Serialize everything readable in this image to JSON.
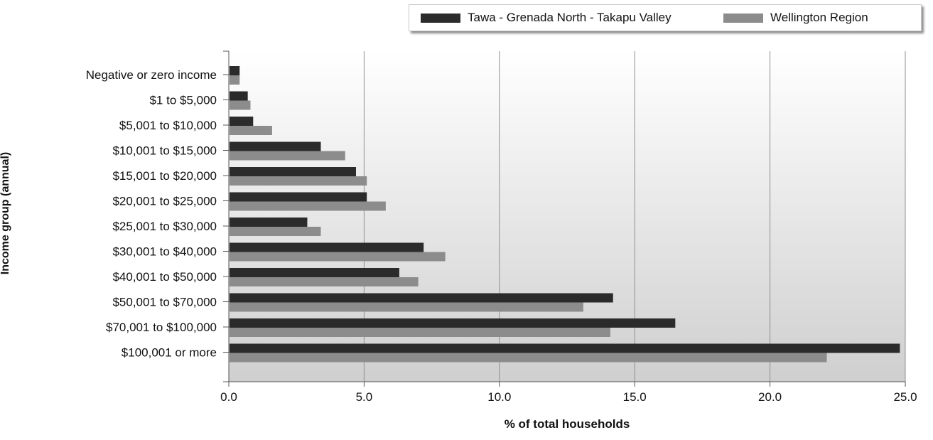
{
  "chart_data": {
    "type": "bar",
    "orientation": "horizontal",
    "categories": [
      "Negative or zero income",
      "$1 to $5,000",
      "$5,001 to $10,000",
      "$10,001 to $15,000",
      "$15,001 to $20,000",
      "$20,001 to $25,000",
      "$25,001 to $30,000",
      "$30,001 to $40,000",
      "$40,001 to $50,000",
      "$50,001 to $70,000",
      "$70,001 to $100,000",
      "$100,001 or more"
    ],
    "series": [
      {
        "name": "Tawa - Grenada North - Takapu Valley",
        "color": "#2b2b2b",
        "values": [
          0.4,
          0.7,
          0.9,
          3.4,
          4.7,
          5.1,
          2.9,
          7.2,
          6.3,
          14.2,
          16.5,
          24.8
        ]
      },
      {
        "name": "Wellington Region",
        "color": "#8c8c8c",
        "values": [
          0.4,
          0.8,
          1.6,
          4.3,
          5.1,
          5.8,
          3.4,
          8.0,
          7.0,
          13.1,
          14.1,
          22.1
        ]
      }
    ],
    "xlabel": "% of total households",
    "ylabel": "Income group (annual)",
    "xlim": [
      0,
      25
    ],
    "xticks": [
      "0.0",
      "5.0",
      "10.0",
      "15.0",
      "20.0",
      "25.0"
    ],
    "grid": true,
    "legend_position": "top-right"
  }
}
